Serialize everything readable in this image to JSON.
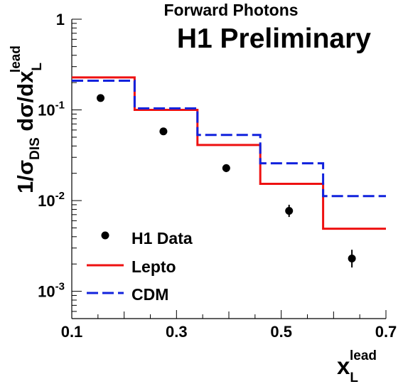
{
  "chart_data": {
    "type": "scatter",
    "title": "Forward Photons",
    "watermark": "H1 Preliminary",
    "xlabel": {
      "main": "x",
      "sub": "L",
      "sup": "lead"
    },
    "ylabel": {
      "prefix": "1/σ",
      "sub": "DIS",
      "mid": " dσ/dx",
      "sub2": "L",
      "sup": "lead"
    },
    "xlim": [
      0.1,
      0.7
    ],
    "ylim": [
      0.0005,
      1
    ],
    "yscale": "log",
    "x_ticks": [
      {
        "value": 0.1,
        "label": "0.1"
      },
      {
        "value": 0.3,
        "label": "0.3"
      },
      {
        "value": 0.5,
        "label": "0.5"
      },
      {
        "value": 0.7,
        "label": "0.7"
      }
    ],
    "y_ticks": [
      {
        "value": 1,
        "base": "1",
        "exp": ""
      },
      {
        "value": 0.1,
        "base": "10",
        "exp": "-1"
      },
      {
        "value": 0.01,
        "base": "10",
        "exp": "-2"
      },
      {
        "value": 0.001,
        "base": "10",
        "exp": "-3"
      }
    ],
    "bin_edges": [
      0.1,
      0.22,
      0.34,
      0.46,
      0.58,
      0.7
    ],
    "series": [
      {
        "name": "H1 Data",
        "kind": "points",
        "color": "#000000",
        "points": [
          {
            "x": 0.155,
            "y": 0.135,
            "err_lo": 0.0105,
            "err_hi": 0.0115
          },
          {
            "x": 0.275,
            "y": 0.058,
            "err_lo": 0.0048,
            "err_hi": 0.0052
          },
          {
            "x": 0.395,
            "y": 0.0228,
            "err_lo": 0.0022,
            "err_hi": 0.0024
          },
          {
            "x": 0.515,
            "y": 0.0077,
            "err_lo": 0.0011,
            "err_hi": 0.0013
          },
          {
            "x": 0.635,
            "y": 0.0023,
            "err_lo": 0.00047,
            "err_hi": 0.00057
          }
        ]
      },
      {
        "name": "Lepto",
        "kind": "histogram",
        "color": "#ee1111",
        "dash": "solid",
        "values": [
          0.228,
          0.1,
          0.041,
          0.0153,
          0.0049
        ]
      },
      {
        "name": "CDM",
        "kind": "histogram",
        "color": "#1122dd",
        "dash": "dashed",
        "values": [
          0.21,
          0.104,
          0.053,
          0.0258,
          0.0112
        ]
      }
    ],
    "legend_position": "bottom-left"
  }
}
